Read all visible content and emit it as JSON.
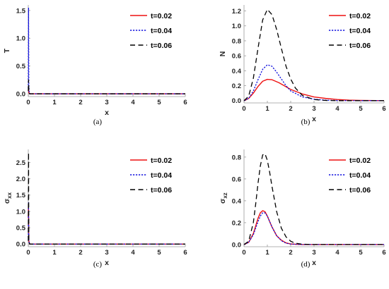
{
  "legend_labels": [
    "t=0.02",
    "t=0.04",
    "t=0.06"
  ],
  "series_colors": [
    "#ee1111",
    "#1111dd",
    "#000000"
  ],
  "chart_data": [
    {
      "type": "line",
      "caption": "(a)",
      "xlabel": "x",
      "ylabel": "T",
      "ylabel_sub": "",
      "xlim": [
        0,
        6
      ],
      "ylim": [
        -0.05,
        1.6
      ],
      "xticks": [
        "0",
        "1",
        "2",
        "3",
        "4",
        "5",
        "6"
      ],
      "yticks": [
        "0.0",
        "0.5",
        "1.0",
        "1.5"
      ],
      "legend_position": "top-right",
      "series": [
        {
          "name": "t=0.02",
          "style": "solid",
          "x": [
            0,
            0.01,
            0.02,
            0.05,
            6
          ],
          "y": [
            0.1,
            0.1,
            0.02,
            0,
            0
          ]
        },
        {
          "name": "t=0.04",
          "style": "dotted",
          "x": [
            0,
            0.01,
            0.015,
            0.02,
            0.03,
            0.05,
            6
          ],
          "y": [
            0.1,
            1.55,
            0.9,
            0.2,
            0.05,
            0,
            0
          ]
        },
        {
          "name": "t=0.06",
          "style": "dashed",
          "x": [
            0,
            0.01,
            0.02,
            0.05,
            6
          ],
          "y": [
            0.05,
            0.25,
            0.05,
            0,
            0
          ]
        }
      ]
    },
    {
      "type": "line",
      "caption": "(b)",
      "xlabel": "x",
      "ylabel": "N",
      "ylabel_sub": "",
      "xlim": [
        0,
        6
      ],
      "ylim": [
        -0.03,
        1.28
      ],
      "xticks": [
        "0",
        "1",
        "2",
        "3",
        "4",
        "5",
        "6"
      ],
      "yticks": [
        "0.0",
        "0.2",
        "0.4",
        "0.6",
        "0.8",
        "1.0",
        "1.2"
      ],
      "legend_position": "top-right",
      "series": [
        {
          "name": "t=0.02",
          "style": "solid",
          "x": [
            0,
            0.2,
            0.4,
            0.6,
            0.8,
            1.0,
            1.2,
            1.5,
            2.0,
            2.5,
            3.0,
            3.5,
            4.0,
            4.5,
            5.0,
            6.0
          ],
          "y": [
            0,
            0.03,
            0.1,
            0.19,
            0.26,
            0.285,
            0.28,
            0.24,
            0.15,
            0.09,
            0.05,
            0.03,
            0.015,
            0.007,
            0.003,
            0
          ]
        },
        {
          "name": "t=0.04",
          "style": "dotted",
          "x": [
            0,
            0.2,
            0.4,
            0.6,
            0.8,
            1.0,
            1.2,
            1.4,
            1.6,
            1.8,
            2.0,
            2.5,
            3.0,
            3.5,
            4.0,
            5.0,
            6.0
          ],
          "y": [
            0,
            0.03,
            0.13,
            0.28,
            0.42,
            0.48,
            0.46,
            0.38,
            0.29,
            0.2,
            0.13,
            0.05,
            0.02,
            0.006,
            0.002,
            0,
            0
          ]
        },
        {
          "name": "t=0.06",
          "style": "dashed",
          "x": [
            0,
            0.2,
            0.4,
            0.6,
            0.8,
            1.0,
            1.2,
            1.4,
            1.6,
            1.8,
            2.0,
            2.2,
            2.5,
            3.0,
            3.5,
            4.0,
            5.0,
            6.0
          ],
          "y": [
            0,
            0.06,
            0.3,
            0.7,
            1.08,
            1.22,
            1.15,
            0.95,
            0.7,
            0.46,
            0.29,
            0.17,
            0.07,
            0.015,
            0.003,
            0,
            0,
            0
          ]
        }
      ]
    },
    {
      "type": "line",
      "caption": "(c)",
      "xlabel": "x",
      "ylabel": "σ",
      "ylabel_sub": "xx",
      "xlim": [
        0,
        6
      ],
      "ylim": [
        -0.08,
        2.9
      ],
      "xticks": [
        "0",
        "1",
        "2",
        "3",
        "4",
        "5",
        "6"
      ],
      "yticks": [
        "0.0",
        "0.5",
        "1.0",
        "1.5",
        "2.0",
        "2.5"
      ],
      "legend_position": "top-right",
      "series": [
        {
          "name": "t=0.02",
          "style": "solid",
          "x": [
            0,
            0.005,
            0.01,
            0.02,
            0.05,
            6
          ],
          "y": [
            0.8,
            1.15,
            0.9,
            0.1,
            0,
            0
          ]
        },
        {
          "name": "t=0.04",
          "style": "dotted",
          "x": [
            0,
            0.01,
            0.02,
            0.05,
            6
          ],
          "y": [
            0.2,
            1.3,
            0.1,
            0,
            0
          ]
        },
        {
          "name": "t=0.06",
          "style": "dashed",
          "x": [
            0,
            0.01,
            0.015,
            0.02,
            0.05,
            6
          ],
          "y": [
            0.1,
            2.8,
            1.2,
            0.1,
            0,
            0
          ]
        }
      ]
    },
    {
      "type": "line",
      "caption": "(d)",
      "xlabel": "x",
      "ylabel": "σ",
      "ylabel_sub": "xz",
      "xlim": [
        0,
        6
      ],
      "ylim": [
        -0.02,
        0.87
      ],
      "xticks": [
        "0",
        "1",
        "2",
        "3",
        "4",
        "5",
        "6"
      ],
      "yticks": [
        "0.0",
        "0.2",
        "0.4",
        "0.6",
        "0.8"
      ],
      "legend_position": "top-right",
      "series": [
        {
          "name": "t=0.02",
          "style": "solid",
          "x": [
            0,
            0.2,
            0.4,
            0.5,
            0.6,
            0.7,
            0.8,
            0.9,
            1.0,
            1.1,
            1.2,
            1.4,
            1.6,
            1.8,
            2.0,
            2.5,
            3.0,
            4.0,
            6.0
          ],
          "y": [
            0,
            0.02,
            0.1,
            0.17,
            0.24,
            0.29,
            0.31,
            0.3,
            0.26,
            0.21,
            0.16,
            0.08,
            0.04,
            0.015,
            0.005,
            0,
            0,
            0,
            0
          ]
        },
        {
          "name": "t=0.04",
          "style": "dotted",
          "x": [
            0,
            0.2,
            0.4,
            0.5,
            0.6,
            0.7,
            0.8,
            0.9,
            1.0,
            1.1,
            1.2,
            1.4,
            1.6,
            1.8,
            2.0,
            2.5,
            3.0,
            4.0,
            6.0
          ],
          "y": [
            0,
            0.02,
            0.09,
            0.15,
            0.21,
            0.26,
            0.29,
            0.29,
            0.26,
            0.21,
            0.16,
            0.08,
            0.035,
            0.012,
            0.004,
            0,
            0,
            0,
            0
          ]
        },
        {
          "name": "t=0.06",
          "style": "dashed",
          "x": [
            0,
            0.2,
            0.4,
            0.5,
            0.6,
            0.7,
            0.8,
            0.9,
            1.0,
            1.1,
            1.2,
            1.4,
            1.6,
            1.8,
            2.0,
            2.2,
            2.5,
            3.0,
            4.0,
            6.0
          ],
          "y": [
            0,
            0.03,
            0.2,
            0.37,
            0.56,
            0.72,
            0.82,
            0.83,
            0.77,
            0.66,
            0.53,
            0.3,
            0.15,
            0.07,
            0.03,
            0.012,
            0.003,
            0,
            0,
            0
          ]
        }
      ]
    }
  ]
}
